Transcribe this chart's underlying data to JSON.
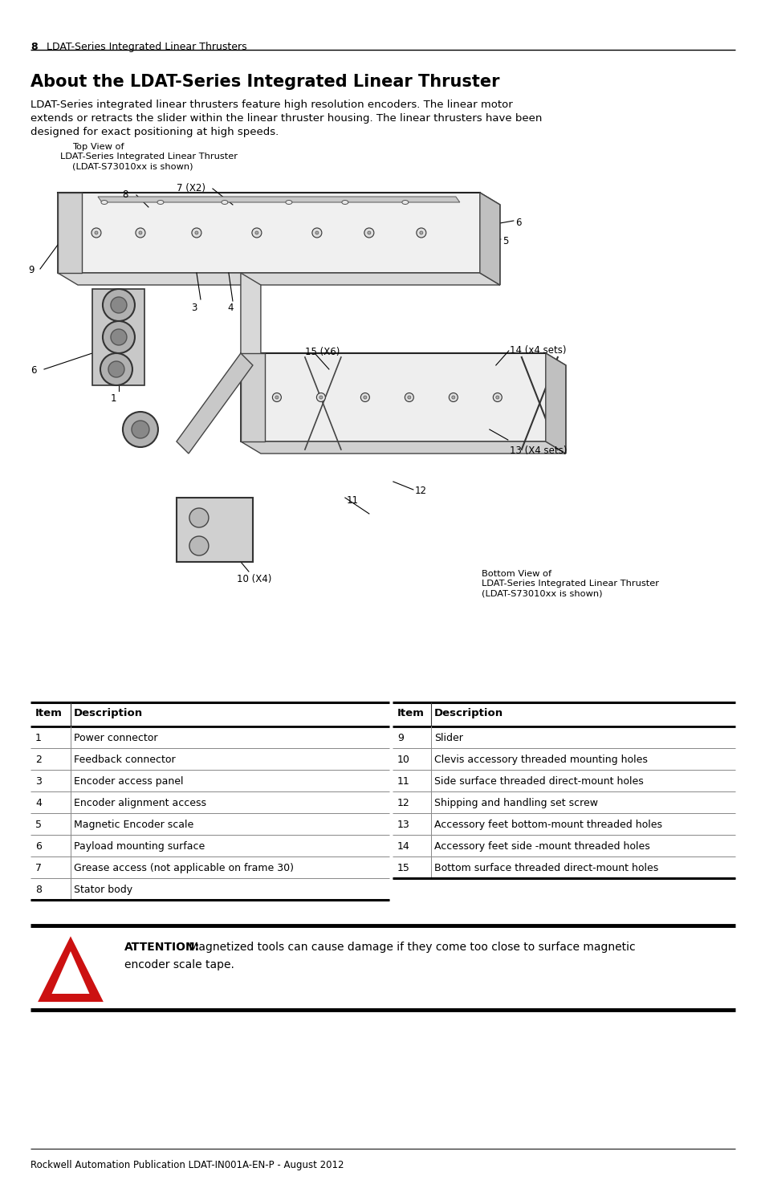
{
  "page_number": "8",
  "header_text": "LDAT-Series Integrated Linear Thrusters",
  "title": "About the LDAT-Series Integrated Linear Thruster",
  "body_text": "LDAT-Series integrated linear thrusters feature high resolution encoders. The linear motor\nextends or retracts the slider within the linear thruster housing. The linear thrusters have been\ndesigned for exact positioning at high speeds.",
  "diagram_caption_top": "Top View of\nLDAT-Series Integrated Linear Thruster\n(LDAT-S73010xx is shown)",
  "diagram_caption_bottom": "Bottom View of\nLDAT-Series Integrated Linear Thruster\n(LDAT-S73010xx is shown)",
  "table_headers_left": [
    "Item",
    "Description"
  ],
  "table_headers_right": [
    "Item",
    "Description"
  ],
  "table_rows_left": [
    [
      "1",
      "Power connector"
    ],
    [
      "2",
      "Feedback connector"
    ],
    [
      "3",
      "Encoder access panel"
    ],
    [
      "4",
      "Encoder alignment access"
    ],
    [
      "5",
      "Magnetic Encoder scale"
    ],
    [
      "6",
      "Payload mounting surface"
    ],
    [
      "7",
      "Grease access (not applicable on frame 30)"
    ],
    [
      "8",
      "Stator body"
    ]
  ],
  "table_rows_right": [
    [
      "9",
      "Slider"
    ],
    [
      "10",
      "Clevis accessory threaded mounting holes"
    ],
    [
      "11",
      "Side surface threaded direct-mount holes"
    ],
    [
      "12",
      "Shipping and handling set screw"
    ],
    [
      "13",
      "Accessory feet bottom-mount threaded holes"
    ],
    [
      "14",
      "Accessory feet side -mount threaded holes"
    ],
    [
      "15",
      "Bottom surface threaded direct-mount holes"
    ]
  ],
  "attention_bold": "ATTENTION:",
  "attention_line1": " Magnetized tools can cause damage if they come too close to surface magnetic",
  "attention_line2": "encoder scale tape.",
  "footer_text": "Rockwell Automation Publication LDAT-IN001A-EN-P - August 2012",
  "bg_color": "#ffffff",
  "text_color": "#000000",
  "attention_icon_color": "#cc1111"
}
